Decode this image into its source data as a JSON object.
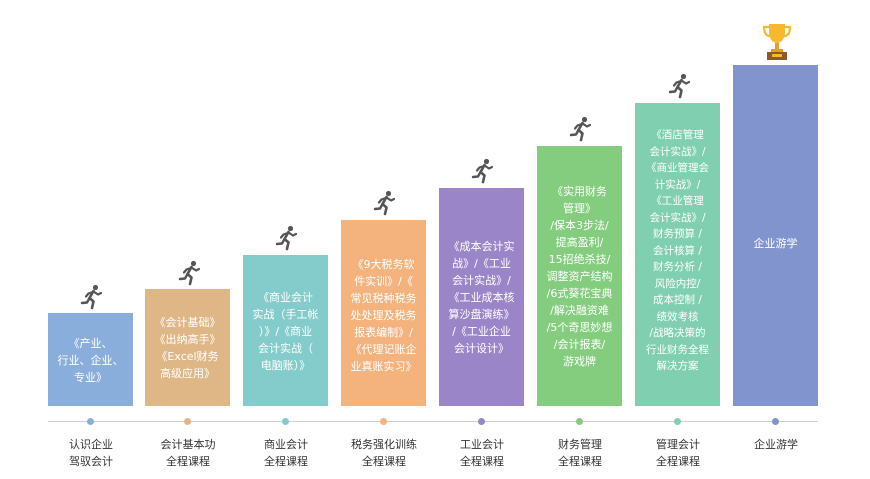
{
  "steps": [
    {
      "text": "《产业、\n行业、企业、\n专业》",
      "label": "认识企业\n驾驭会计",
      "color": "#8aaedc"
    },
    {
      "text": "《会计基础》\n《出纳高手》\n《Excel财务\n高级应用》",
      "label": "会计基本功\n全程课程",
      "color": "#dfb787"
    },
    {
      "text": "《商业会计\n实战（手工帐\n）》/《商业\n会计实战（\n电脑账）》",
      "label": "商业会计\n全程课程",
      "color": "#84cccb"
    },
    {
      "text": "《9大税务软\n件实训》/《\n常见税种税务\n处处理及税务\n报表编制》/\n《代理记账企\n业真账实习》",
      "label": "税务强化训练\n全程课程",
      "color": "#f4b27d"
    },
    {
      "text": "《成本会计实\n战》/《工业\n会计实战》/\n《工业成本核\n算沙盘演练》\n/《工业企业\n会计设计》",
      "label": "工业会计\n全程课程",
      "color": "#9b85c9"
    },
    {
      "text": "《实用财务\n管理》\n/保本3步法/\n提高盈利/\n15招绝杀技/\n调整资产结构\n/6式葵花宝典\n/解决融资难\n/5个奇思妙想\n/会计报表/\n游戏牌",
      "label": "财务管理\n全程课程",
      "color": "#84cd7f"
    },
    {
      "text": "《酒店管理\n会计实战》/\n《商业管理会\n计实战》/\n《工业管理\n会计实战》/\n财务预算 /\n会计核算 /\n财务分析 /\n风险内控/\n成本控制 /\n绩效考核\n/战略决策的\n行业财务全程\n解决方案",
      "label": "管理会计\n全程课程",
      "color": "#80cfb0"
    },
    {
      "text": "企业游学",
      "label": "企业游学",
      "color": "#8194cd"
    }
  ],
  "icons": {
    "runner": "running-person-icon",
    "trophy": "trophy-icon"
  },
  "dot_colors": [
    "#8aaedc",
    "#dfb787",
    "#84cccb",
    "#f4b27d",
    "#9b85c9",
    "#84cd7f",
    "#80cfb0",
    "#8194cd"
  ],
  "runner_color": "#555555"
}
